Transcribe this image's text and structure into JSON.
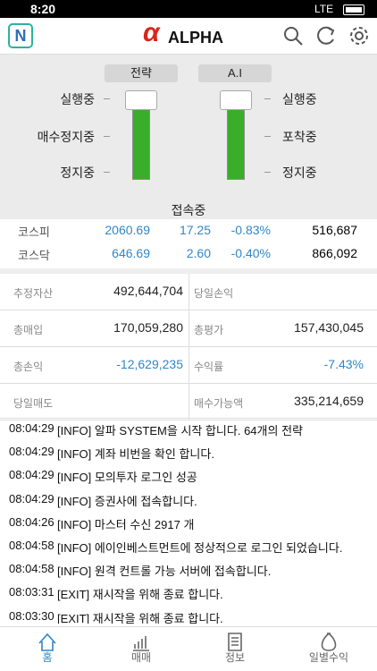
{
  "status": {
    "time": "8:20",
    "network": "LTE"
  },
  "header": {
    "badge": "N",
    "logo_mark": "α",
    "logo": "ALPHA"
  },
  "panel": {
    "left": {
      "title": "전략",
      "states": [
        "실행중",
        "매수정지중",
        "정지중"
      ]
    },
    "right": {
      "title": "A.I",
      "states": [
        "실행중",
        "포착중",
        "정지중"
      ]
    },
    "connection": "접속중"
  },
  "market": {
    "rows": [
      [
        "코스피",
        "2060.69",
        "17.25",
        "-0.83%",
        "516,687"
      ],
      [
        "코스닥",
        "646.69",
        "2.60",
        "-0.40%",
        "866,092"
      ]
    ]
  },
  "account": {
    "rows": [
      [
        [
          "추정자산",
          "492,644,704"
        ],
        [
          "당일손익",
          null
        ]
      ],
      [
        [
          "총매입",
          "170,059,280"
        ],
        [
          "총평가",
          "157,430,045"
        ]
      ],
      [
        [
          "총손익",
          "-12,629,235"
        ],
        [
          "수익률",
          "-7.43%"
        ]
      ],
      [
        [
          "당일매도",
          null
        ],
        [
          "매수가능액",
          "335,214,659"
        ]
      ]
    ]
  },
  "log": [
    [
      "08:04:29",
      "[INFO] 알파 SYSTEM을 시작 합니다. 64개의 전략"
    ],
    [
      "08:04:29",
      "[INFO] 계좌 비번을 확인 합니다."
    ],
    [
      "08:04:29",
      "[INFO] 모의투자 로그인 성공"
    ],
    [
      "08:04:29",
      "[INFO] 증권사에 접속합니다."
    ],
    [
      "08:04:26",
      "[INFO] 마스터 수신 2917 개"
    ],
    [
      "08:04:58",
      "[INFO] 에이인베스트먼트에 정상적으로 로그인 되었습니다."
    ],
    [
      "08:04:58",
      "[INFO] 원격 컨트롤 가능 서버에 접속합니다."
    ],
    [
      "08:03:31",
      "[EXIT] 재시작을 위해 종료 합니다."
    ],
    [
      "08:03:30",
      "[EXIT] 재시작을 위해 종료 합니다."
    ]
  ],
  "nav": [
    "홈",
    "매매",
    "정보",
    "일별수익"
  ]
}
